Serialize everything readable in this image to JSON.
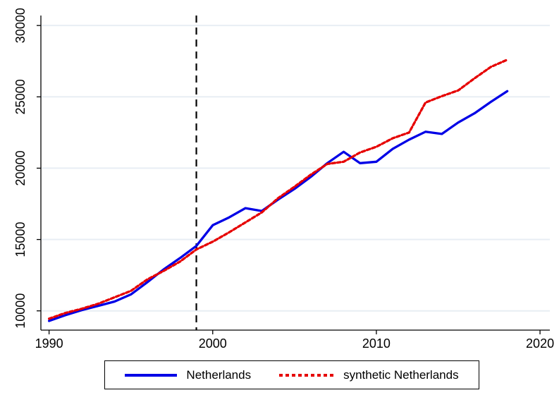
{
  "chart_data": {
    "type": "line",
    "title": "",
    "xlabel": "",
    "ylabel": "",
    "x": [
      1990,
      1991,
      1992,
      1993,
      1994,
      1995,
      1996,
      1997,
      1998,
      1999,
      2000,
      2001,
      2002,
      2003,
      2004,
      2005,
      2006,
      2007,
      2008,
      2009,
      2010,
      2011,
      2012,
      2013,
      2014,
      2015,
      2016,
      2017,
      2018
    ],
    "series": [
      {
        "name": "Netherlands",
        "color": "#0000e6",
        "line_style": "solid",
        "values": [
          9300,
          9700,
          10050,
          10350,
          10650,
          11150,
          12000,
          12900,
          13700,
          14550,
          16000,
          16550,
          17200,
          17000,
          17800,
          18550,
          19400,
          20350,
          21150,
          20350,
          20450,
          21350,
          22000,
          22550,
          22400,
          23200,
          23850,
          24650,
          25400
        ]
      },
      {
        "name": "synthetic Netherlands",
        "color": "#e60000",
        "line_style": "dashed",
        "values": [
          9450,
          9850,
          10150,
          10500,
          10950,
          11400,
          12200,
          12800,
          13450,
          14300,
          14850,
          15500,
          16200,
          16900,
          17900,
          18700,
          19550,
          20300,
          20450,
          21100,
          21500,
          22100,
          22500,
          24600,
          25050,
          25450,
          26300,
          27100,
          27600
        ]
      }
    ],
    "vline": {
      "x": 1999,
      "color": "#000000",
      "line_style": "dashed"
    },
    "xticks": [
      1990,
      2000,
      2010,
      2020
    ],
    "yticks": [
      10000,
      15000,
      20000,
      25000,
      30000
    ],
    "xlim": [
      1989.5,
      2020.6
    ],
    "ylim": [
      8650,
      30700
    ],
    "grid": "horizontal-only",
    "grid_color": "#e8eef4",
    "axis_color": "#000000",
    "legend_position": "bottom-center",
    "legend_border": true
  }
}
